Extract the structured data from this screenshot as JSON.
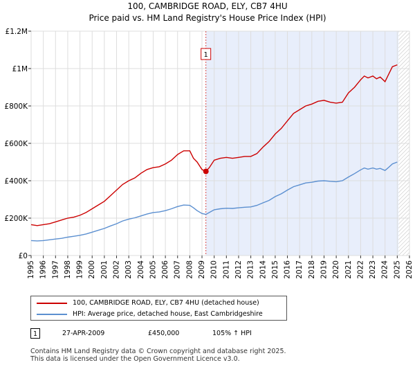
{
  "title_line1": "100, CAMBRIDGE ROAD, ELY, CB7 4HU",
  "title_line2": "Price paid vs. HM Land Registry's House Price Index (HPI)",
  "legend": [
    {
      "label": "100, CAMBRIDGE ROAD, ELY, CB7 4HU (detached house)",
      "color": "#cc0000"
    },
    {
      "label": "HPI: Average price, detached house, East Cambridgeshire",
      "color": "#5b8fd0"
    }
  ],
  "annotation": {
    "number": "1",
    "date": "27-APR-2009",
    "price": "£450,000",
    "hpi_change": "105% ↑ HPI"
  },
  "footer_line1": "Contains HM Land Registry data © Crown copyright and database right 2025.",
  "footer_line2": "This data is licensed under the Open Government Licence v3.0.",
  "colors": {
    "property": "#cc0000",
    "hpi": "#5b8fd0",
    "shade": "#e8eefb",
    "grid": "#dddddd"
  },
  "chart_data": {
    "type": "line",
    "title": "Price paid vs. HM Land Registry's House Price Index (HPI)",
    "xlim": [
      1995,
      2026
    ],
    "ylim": [
      0,
      1200000
    ],
    "yticks": [
      0,
      200000,
      400000,
      600000,
      800000,
      1000000,
      1200000
    ],
    "ytick_labels": [
      "£0",
      "£200K",
      "£400K",
      "£600K",
      "£800K",
      "£1M",
      "£1.2M"
    ],
    "xticks": [
      1995,
      1996,
      1997,
      1998,
      1999,
      2000,
      2001,
      2002,
      2003,
      2004,
      2005,
      2006,
      2007,
      2008,
      2009,
      2010,
      2011,
      2012,
      2013,
      2014,
      2015,
      2016,
      2017,
      2018,
      2019,
      2020,
      2021,
      2022,
      2023,
      2024,
      2025,
      2026
    ],
    "marker_label": "1",
    "sale": {
      "x": 2009.32,
      "y": 450000
    },
    "shade_range": [
      2009.32,
      2025.1
    ],
    "future_from": 2025.1,
    "series": [
      {
        "name": "100, CAMBRIDGE ROAD, ELY, CB7 4HU (detached house)",
        "x": [
          1995.0,
          1995.5,
          1996.0,
          1996.5,
          1997.0,
          1997.5,
          1998.0,
          1998.5,
          1999.0,
          1999.5,
          2000.0,
          2000.5,
          2001.0,
          2001.5,
          2002.0,
          2002.5,
          2003.0,
          2003.5,
          2004.0,
          2004.5,
          2005.0,
          2005.5,
          2006.0,
          2006.5,
          2007.0,
          2007.5,
          2008.0,
          2008.3,
          2008.6,
          2009.0,
          2009.32,
          2009.6,
          2010.0,
          2010.5,
          2011.0,
          2011.5,
          2012.0,
          2012.5,
          2013.0,
          2013.5,
          2014.0,
          2014.5,
          2015.0,
          2015.5,
          2016.0,
          2016.5,
          2017.0,
          2017.5,
          2018.0,
          2018.5,
          2019.0,
          2019.5,
          2020.0,
          2020.5,
          2021.0,
          2021.5,
          2022.0,
          2022.3,
          2022.6,
          2023.0,
          2023.3,
          2023.6,
          2024.0,
          2024.3,
          2024.6,
          2025.0
        ],
        "y": [
          165000,
          160000,
          165000,
          170000,
          180000,
          190000,
          200000,
          205000,
          215000,
          230000,
          250000,
          270000,
          290000,
          320000,
          350000,
          380000,
          400000,
          415000,
          440000,
          460000,
          470000,
          475000,
          490000,
          510000,
          540000,
          560000,
          560000,
          520000,
          500000,
          460000,
          450000,
          470000,
          510000,
          520000,
          525000,
          520000,
          525000,
          530000,
          530000,
          545000,
          580000,
          610000,
          650000,
          680000,
          720000,
          760000,
          780000,
          800000,
          810000,
          825000,
          830000,
          820000,
          815000,
          820000,
          870000,
          900000,
          940000,
          960000,
          950000,
          960000,
          945000,
          955000,
          930000,
          970000,
          1010000,
          1020000
        ]
      },
      {
        "name": "HPI: Average price, detached house, East Cambridgeshire",
        "x": [
          1995.0,
          1995.5,
          1996.0,
          1996.5,
          1997.0,
          1997.5,
          1998.0,
          1998.5,
          1999.0,
          1999.5,
          2000.0,
          2000.5,
          2001.0,
          2001.5,
          2002.0,
          2002.5,
          2003.0,
          2003.5,
          2004.0,
          2004.5,
          2005.0,
          2005.5,
          2006.0,
          2006.5,
          2007.0,
          2007.5,
          2008.0,
          2008.3,
          2008.6,
          2009.0,
          2009.32,
          2009.6,
          2010.0,
          2010.5,
          2011.0,
          2011.5,
          2012.0,
          2012.5,
          2013.0,
          2013.5,
          2014.0,
          2014.5,
          2015.0,
          2015.5,
          2016.0,
          2016.5,
          2017.0,
          2017.5,
          2018.0,
          2018.5,
          2019.0,
          2019.5,
          2020.0,
          2020.5,
          2021.0,
          2021.5,
          2022.0,
          2022.3,
          2022.6,
          2023.0,
          2023.3,
          2023.6,
          2024.0,
          2024.3,
          2024.6,
          2025.0
        ],
        "y": [
          80000,
          78000,
          80000,
          84000,
          88000,
          92000,
          98000,
          103000,
          108000,
          115000,
          125000,
          135000,
          145000,
          158000,
          170000,
          185000,
          195000,
          202000,
          212000,
          222000,
          230000,
          233000,
          240000,
          250000,
          262000,
          270000,
          268000,
          255000,
          240000,
          225000,
          220000,
          230000,
          245000,
          250000,
          253000,
          252000,
          255000,
          258000,
          260000,
          268000,
          282000,
          295000,
          315000,
          330000,
          350000,
          368000,
          378000,
          388000,
          392000,
          398000,
          400000,
          397000,
          395000,
          400000,
          420000,
          438000,
          458000,
          468000,
          462000,
          468000,
          462000,
          466000,
          455000,
          472000,
          490000,
          500000
        ]
      }
    ]
  }
}
